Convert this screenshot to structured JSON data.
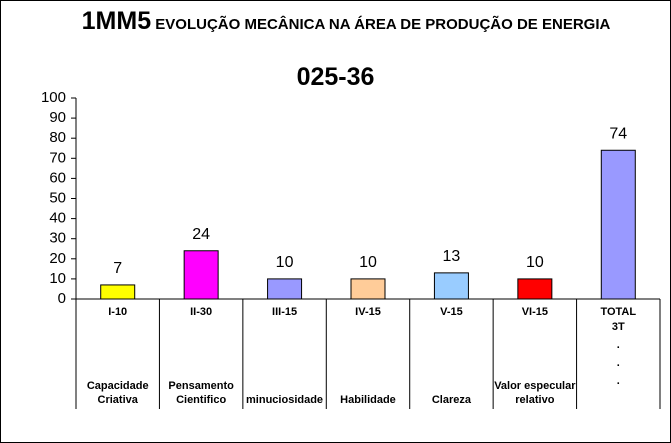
{
  "chart_data": {
    "type": "bar",
    "title_code": "1MM5",
    "title": "EVOLUÇÃO MECÂNICA NA ÁREA DE PRODUÇÃO DE ENERGIA",
    "subtitle": "025-36",
    "categories": [
      "I-10",
      "II-30",
      "III-15",
      "IV-15",
      "V-15",
      "VI-15",
      "TOTAL"
    ],
    "category_descriptions": [
      "Capacidade Criativa",
      "Pensamento Cientifico",
      "minuciosidade",
      "Habilidade",
      "Clareza",
      "Valor especular relativo",
      null
    ],
    "total_notes": [
      "3T",
      ".",
      ".",
      "."
    ],
    "values": [
      7,
      24,
      10,
      10,
      13,
      10,
      74
    ],
    "colors": [
      "#ffff00",
      "#ff00ff",
      "#9999ff",
      "#ffcc99",
      "#99ccff",
      "#ff0000",
      "#9999ff"
    ],
    "ylim": [
      0,
      100
    ],
    "yticks": [
      0,
      10,
      20,
      30,
      40,
      50,
      60,
      70,
      80,
      90,
      100
    ],
    "grid": false
  }
}
